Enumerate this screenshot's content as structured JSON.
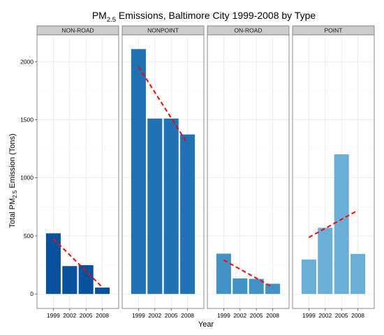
{
  "chart_data": {
    "type": "bar",
    "title": "PM2.5 Emissions, Baltimore City 1999-2008 by Type",
    "title_parts": {
      "main": "PM",
      "sub": "2.5",
      "rest": " Emissions, Baltimore City 1999-2008 by Type"
    },
    "xlabel": "Year",
    "ylabel": "Total PM2.5 Emission (Tons)",
    "ylabel_parts": {
      "main": "Total PM",
      "sub": "2.5",
      "rest": " Emission (Tons)"
    },
    "categories": [
      "1999",
      "2002",
      "2005",
      "2008"
    ],
    "ylim": [
      -125,
      2230
    ],
    "yticks": [
      0,
      500,
      1000,
      1500,
      2000
    ],
    "grid": true,
    "trend_line": {
      "style": "dashed",
      "color": "#ff0000",
      "method": "linear fit"
    },
    "facets": [
      {
        "name": "NON-ROAD",
        "color": "#08519c",
        "values": [
          522,
          240,
          248,
          55
        ]
      },
      {
        "name": "NONPOINT",
        "color": "#2171b5",
        "values": [
          2108,
          1510,
          1510,
          1373
        ]
      },
      {
        "name": "ON-ROAD",
        "color": "#4292c6",
        "values": [
          347,
          134,
          130,
          88
        ]
      },
      {
        "name": "POINT",
        "color": "#6baed6",
        "values": [
          297,
          570,
          1202,
          345
        ]
      }
    ]
  }
}
